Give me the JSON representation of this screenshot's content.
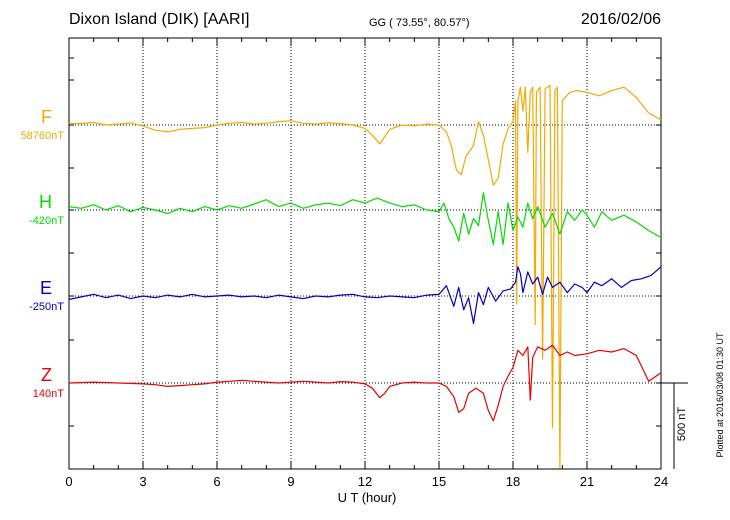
{
  "header": {
    "station": "Dixon Island (DIK)  [AARI]",
    "coords": "GG ( 73.55°,  80.57°)",
    "date": "2016/02/06"
  },
  "chart_data": {
    "type": "line",
    "xlabel": "U T (hour)",
    "xlim": [
      0,
      24
    ],
    "xticks": [
      "0",
      "3",
      "6",
      "9",
      "12",
      "15",
      "18",
      "21",
      "24"
    ],
    "grid": true,
    "scale_bar": {
      "label": "500 nT",
      "value_nT": 500
    },
    "plotted_note": "Plotted at 2016/03/08 01:30 UT",
    "series": [
      {
        "name": "F",
        "baseline_label": "58760nT",
        "color": "#f5a800",
        "points": [
          [
            0,
            58770
          ],
          [
            0.5,
            58768
          ],
          [
            1,
            58775
          ],
          [
            1.5,
            58760
          ],
          [
            2,
            58765
          ],
          [
            2.5,
            58772
          ],
          [
            3,
            58755
          ],
          [
            3.5,
            58730
          ],
          [
            4,
            58720
          ],
          [
            4.5,
            58735
          ],
          [
            5,
            58740
          ],
          [
            5.5,
            58745
          ],
          [
            6,
            58760
          ],
          [
            6.5,
            58770
          ],
          [
            7,
            58775
          ],
          [
            7.5,
            58765
          ],
          [
            8,
            58770
          ],
          [
            8.5,
            58780
          ],
          [
            9,
            58785
          ],
          [
            9.5,
            58770
          ],
          [
            10,
            58765
          ],
          [
            10.5,
            58772
          ],
          [
            11,
            58768
          ],
          [
            11.5,
            58760
          ],
          [
            12,
            58740
          ],
          [
            12.3,
            58700
          ],
          [
            12.6,
            58650
          ],
          [
            12.8,
            58690
          ],
          [
            13,
            58735
          ],
          [
            13.5,
            58760
          ],
          [
            14,
            58755
          ],
          [
            14.5,
            58765
          ],
          [
            15,
            58760
          ],
          [
            15.3,
            58720
          ],
          [
            15.5,
            58640
          ],
          [
            15.7,
            58500
          ],
          [
            15.9,
            58470
          ],
          [
            16.1,
            58580
          ],
          [
            16.4,
            58640
          ],
          [
            16.6,
            58780
          ],
          [
            16.8,
            58700
          ],
          [
            17,
            58560
          ],
          [
            17.2,
            58410
          ],
          [
            17.4,
            58450
          ],
          [
            17.6,
            58650
          ],
          [
            17.8,
            58740
          ],
          [
            18,
            58780
          ],
          [
            18.1,
            58900
          ],
          [
            18.15,
            57720
          ],
          [
            18.2,
            58900
          ],
          [
            18.3,
            58980
          ],
          [
            18.4,
            58840
          ],
          [
            18.5,
            58980
          ],
          [
            18.6,
            58600
          ],
          [
            18.7,
            58950
          ],
          [
            18.8,
            58980
          ],
          [
            18.9,
            57600
          ],
          [
            18.95,
            58950
          ],
          [
            19.1,
            58980
          ],
          [
            19.2,
            57400
          ],
          [
            19.3,
            58970
          ],
          [
            19.5,
            58990
          ],
          [
            19.6,
            57000
          ],
          [
            19.7,
            58960
          ],
          [
            19.8,
            58980
          ],
          [
            19.9,
            56500
          ],
          [
            20,
            58900
          ],
          [
            20.3,
            58950
          ],
          [
            20.6,
            58960
          ],
          [
            21,
            58950
          ],
          [
            21.5,
            58930
          ],
          [
            22,
            58960
          ],
          [
            22.5,
            58980
          ],
          [
            23,
            58920
          ],
          [
            23.5,
            58830
          ],
          [
            24,
            58790
          ]
        ]
      },
      {
        "name": "H",
        "baseline_label": "-420nT",
        "color": "#00dd00",
        "points": [
          [
            0,
            -400
          ],
          [
            0.5,
            -410
          ],
          [
            1,
            -390
          ],
          [
            1.5,
            -420
          ],
          [
            2,
            -395
          ],
          [
            2.5,
            -430
          ],
          [
            3,
            -405
          ],
          [
            3.5,
            -420
          ],
          [
            4,
            -440
          ],
          [
            4.5,
            -410
          ],
          [
            5,
            -430
          ],
          [
            5.5,
            -400
          ],
          [
            6,
            -420
          ],
          [
            6.5,
            -395
          ],
          [
            7,
            -410
          ],
          [
            7.5,
            -385
          ],
          [
            8,
            -360
          ],
          [
            8.5,
            -400
          ],
          [
            9,
            -380
          ],
          [
            9.5,
            -410
          ],
          [
            10,
            -390
          ],
          [
            10.5,
            -380
          ],
          [
            11,
            -395
          ],
          [
            11.5,
            -360
          ],
          [
            12,
            -380
          ],
          [
            12.5,
            -350
          ],
          [
            13,
            -380
          ],
          [
            13.5,
            -400
          ],
          [
            14,
            -390
          ],
          [
            14.5,
            -420
          ],
          [
            15,
            -430
          ],
          [
            15.2,
            -380
          ],
          [
            15.4,
            -470
          ],
          [
            15.6,
            -520
          ],
          [
            15.8,
            -600
          ],
          [
            16,
            -440
          ],
          [
            16.2,
            -560
          ],
          [
            16.4,
            -470
          ],
          [
            16.6,
            -510
          ],
          [
            16.8,
            -320
          ],
          [
            17,
            -480
          ],
          [
            17.2,
            -620
          ],
          [
            17.4,
            -430
          ],
          [
            17.6,
            -620
          ],
          [
            17.8,
            -380
          ],
          [
            18,
            -540
          ],
          [
            18.2,
            -460
          ],
          [
            18.4,
            -520
          ],
          [
            18.6,
            -380
          ],
          [
            18.8,
            -470
          ],
          [
            19,
            -400
          ],
          [
            19.3,
            -520
          ],
          [
            19.6,
            -440
          ],
          [
            19.9,
            -560
          ],
          [
            20.2,
            -430
          ],
          [
            20.5,
            -480
          ],
          [
            20.8,
            -420
          ],
          [
            21,
            -450
          ],
          [
            21.3,
            -520
          ],
          [
            21.6,
            -430
          ],
          [
            22,
            -480
          ],
          [
            22.5,
            -450
          ],
          [
            23,
            -490
          ],
          [
            23.5,
            -540
          ],
          [
            24,
            -580
          ]
        ]
      },
      {
        "name": "E",
        "baseline_label": "-250nT",
        "color": "#0000cc",
        "points": [
          [
            0,
            -270
          ],
          [
            0.5,
            -255
          ],
          [
            1,
            -240
          ],
          [
            1.5,
            -260
          ],
          [
            2,
            -245
          ],
          [
            2.5,
            -265
          ],
          [
            3,
            -250
          ],
          [
            3.5,
            -260
          ],
          [
            4,
            -245
          ],
          [
            4.5,
            -255
          ],
          [
            5,
            -240
          ],
          [
            5.5,
            -255
          ],
          [
            6,
            -250
          ],
          [
            6.5,
            -245
          ],
          [
            7,
            -255
          ],
          [
            7.5,
            -250
          ],
          [
            8,
            -260
          ],
          [
            8.5,
            -245
          ],
          [
            9,
            -255
          ],
          [
            9.5,
            -265
          ],
          [
            10,
            -250
          ],
          [
            10.5,
            -255
          ],
          [
            11,
            -245
          ],
          [
            11.5,
            -240
          ],
          [
            12,
            -255
          ],
          [
            12.5,
            -260
          ],
          [
            13,
            -250
          ],
          [
            13.5,
            -255
          ],
          [
            14,
            -260
          ],
          [
            14.5,
            -245
          ],
          [
            15,
            -240
          ],
          [
            15.3,
            -190
          ],
          [
            15.6,
            -310
          ],
          [
            15.8,
            -200
          ],
          [
            16,
            -330
          ],
          [
            16.2,
            -260
          ],
          [
            16.4,
            -410
          ],
          [
            16.6,
            -230
          ],
          [
            16.8,
            -300
          ],
          [
            17,
            -200
          ],
          [
            17.3,
            -280
          ],
          [
            17.6,
            -220
          ],
          [
            17.9,
            -210
          ],
          [
            18.1,
            -170
          ],
          [
            18.2,
            -80
          ],
          [
            18.3,
            -120
          ],
          [
            18.4,
            -230
          ],
          [
            18.6,
            -110
          ],
          [
            18.8,
            -180
          ],
          [
            19,
            -140
          ],
          [
            19.2,
            -240
          ],
          [
            19.4,
            -140
          ],
          [
            19.6,
            -200
          ],
          [
            19.9,
            -170
          ],
          [
            20.2,
            -230
          ],
          [
            20.5,
            -180
          ],
          [
            20.8,
            -200
          ],
          [
            21,
            -230
          ],
          [
            21.3,
            -170
          ],
          [
            21.6,
            -190
          ],
          [
            22,
            -150
          ],
          [
            22.4,
            -200
          ],
          [
            22.8,
            -160
          ],
          [
            23.2,
            -150
          ],
          [
            23.6,
            -130
          ],
          [
            24,
            -80
          ]
        ]
      },
      {
        "name": "Z",
        "baseline_label": "140nT",
        "color": "#ee0000",
        "points": [
          [
            0,
            140
          ],
          [
            1,
            145
          ],
          [
            2,
            140
          ],
          [
            3,
            135
          ],
          [
            3.5,
            130
          ],
          [
            4,
            120
          ],
          [
            4.5,
            125
          ],
          [
            5,
            130
          ],
          [
            5.5,
            135
          ],
          [
            6,
            145
          ],
          [
            6.5,
            150
          ],
          [
            7,
            155
          ],
          [
            7.5,
            150
          ],
          [
            8,
            145
          ],
          [
            8.5,
            140
          ],
          [
            9,
            145
          ],
          [
            9.5,
            150
          ],
          [
            10,
            145
          ],
          [
            10.5,
            140
          ],
          [
            11,
            148
          ],
          [
            11.5,
            145
          ],
          [
            12,
            135
          ],
          [
            12.3,
            110
          ],
          [
            12.6,
            55
          ],
          [
            12.8,
            80
          ],
          [
            13,
            120
          ],
          [
            13.5,
            140
          ],
          [
            14,
            145
          ],
          [
            14.5,
            140
          ],
          [
            15,
            140
          ],
          [
            15.3,
            120
          ],
          [
            15.6,
            60
          ],
          [
            15.8,
            -30
          ],
          [
            16,
            -10
          ],
          [
            16.2,
            80
          ],
          [
            16.5,
            110
          ],
          [
            16.8,
            80
          ],
          [
            17,
            -20
          ],
          [
            17.2,
            -80
          ],
          [
            17.4,
            10
          ],
          [
            17.6,
            120
          ],
          [
            17.8,
            180
          ],
          [
            18,
            230
          ],
          [
            18.2,
            330
          ],
          [
            18.4,
            300
          ],
          [
            18.6,
            350
          ],
          [
            18.7,
            40
          ],
          [
            18.8,
            290
          ],
          [
            19,
            350
          ],
          [
            19.3,
            330
          ],
          [
            19.6,
            360
          ],
          [
            19.9,
            300
          ],
          [
            20.2,
            320
          ],
          [
            20.5,
            300
          ],
          [
            21,
            310
          ],
          [
            21.5,
            330
          ],
          [
            22,
            320
          ],
          [
            22.5,
            340
          ],
          [
            23,
            300
          ],
          [
            23.5,
            150
          ],
          [
            24,
            200
          ]
        ]
      }
    ]
  }
}
